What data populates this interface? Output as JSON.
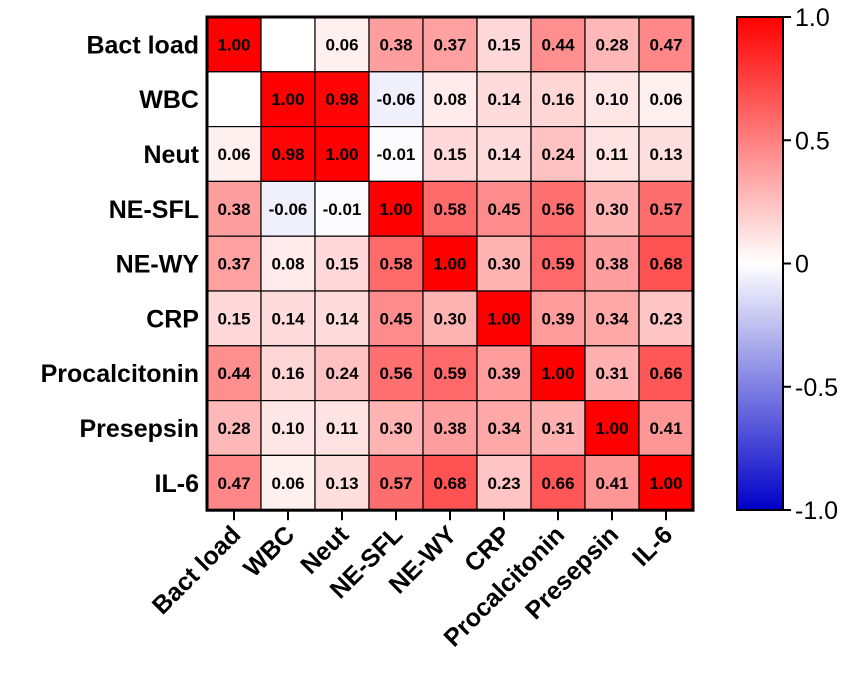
{
  "chart_data": {
    "type": "heatmap",
    "title": "",
    "row_labels": [
      "Bact load",
      "WBC",
      "Neut",
      "NE-SFL",
      "NE-WY",
      "CRP",
      "Procalcitonin",
      "Presepsin",
      "IL-6"
    ],
    "col_labels": [
      "Bact load",
      "WBC",
      "Neut",
      "NE-SFL",
      "NE-WY",
      "CRP",
      "Procalcitonin",
      "Presepsin",
      "IL-6"
    ],
    "values": [
      [
        1.0,
        null,
        0.06,
        0.38,
        0.37,
        0.15,
        0.44,
        0.28,
        0.47
      ],
      [
        null,
        1.0,
        0.98,
        -0.06,
        0.08,
        0.14,
        0.16,
        0.1,
        0.06
      ],
      [
        0.06,
        0.98,
        1.0,
        -0.01,
        0.15,
        0.14,
        0.24,
        0.11,
        0.13
      ],
      [
        0.38,
        -0.06,
        -0.01,
        1.0,
        0.58,
        0.45,
        0.56,
        0.3,
        0.57
      ],
      [
        0.37,
        0.08,
        0.15,
        0.58,
        1.0,
        0.3,
        0.59,
        0.38,
        0.68
      ],
      [
        0.15,
        0.14,
        0.14,
        0.45,
        0.3,
        1.0,
        0.39,
        0.34,
        0.23
      ],
      [
        0.44,
        0.16,
        0.24,
        0.56,
        0.59,
        0.39,
        1.0,
        0.31,
        0.66
      ],
      [
        0.28,
        0.1,
        0.11,
        0.3,
        0.38,
        0.34,
        0.31,
        1.0,
        0.41
      ],
      [
        0.47,
        0.06,
        0.13,
        0.57,
        0.68,
        0.23,
        0.66,
        0.41,
        1.0
      ]
    ],
    "colorbar": {
      "min": -1.0,
      "max": 1.0,
      "ticks": [
        1.0,
        0.5,
        0,
        -0.5,
        -1.0
      ],
      "tick_labels": [
        "1.0",
        "0.5",
        "0",
        "-0.5",
        "-1.0"
      ],
      "colors": {
        "low": "#0000c8",
        "mid": "#ffffff",
        "high": "#ff0000"
      }
    },
    "grid": true,
    "legend_position": "right"
  }
}
